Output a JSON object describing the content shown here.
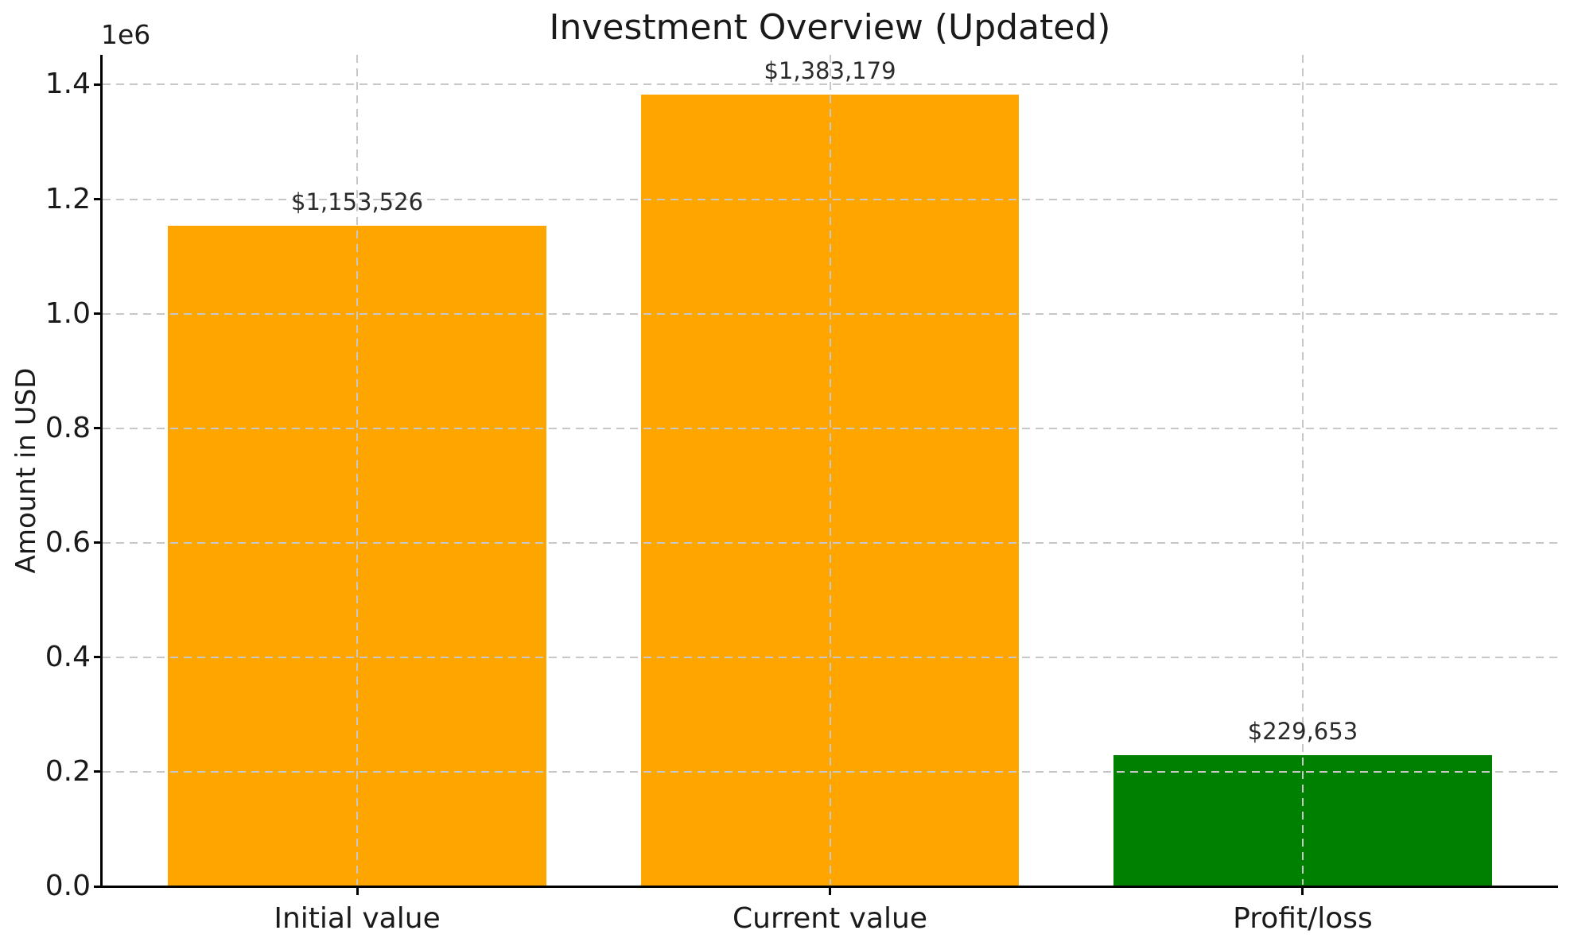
{
  "figure": {
    "background": "#ffffff"
  },
  "chart_data": {
    "type": "bar",
    "title": "Investment Overview (Updated)",
    "xlabel": "",
    "ylabel": "Amount in USD",
    "offset_label": "1e6",
    "categories": [
      "Initial value",
      "Current value",
      "Profit/loss"
    ],
    "series": [
      {
        "name": "Amount in USD",
        "values": [
          1153526,
          1383179,
          229653
        ]
      }
    ],
    "value_labels": [
      "$1,153,526",
      "$1,383,179",
      "$229,653"
    ],
    "bar_colors": [
      "#ffa500",
      "#ffa500",
      "#008000"
    ],
    "bar_width": 0.8,
    "xlim": [
      -0.54,
      2.54
    ],
    "ylim": [
      0,
      1452000
    ],
    "yticks": [
      0,
      200000,
      400000,
      600000,
      800000,
      1000000,
      1200000,
      1400000
    ],
    "ytick_labels": [
      "0.0",
      "0.2",
      "0.4",
      "0.6",
      "0.8",
      "1.0",
      "1.2",
      "1.4"
    ],
    "grid": true,
    "grid_style": "dashed",
    "grid_above_bars": true,
    "grid_color": "#c8c8c8",
    "axis_color": "#000000",
    "title_color": "#1a1a1a",
    "tick_color": "#1a1a1a",
    "value_label_color": "#2b2b2b",
    "legend": null,
    "spines": [
      "left",
      "bottom"
    ]
  }
}
